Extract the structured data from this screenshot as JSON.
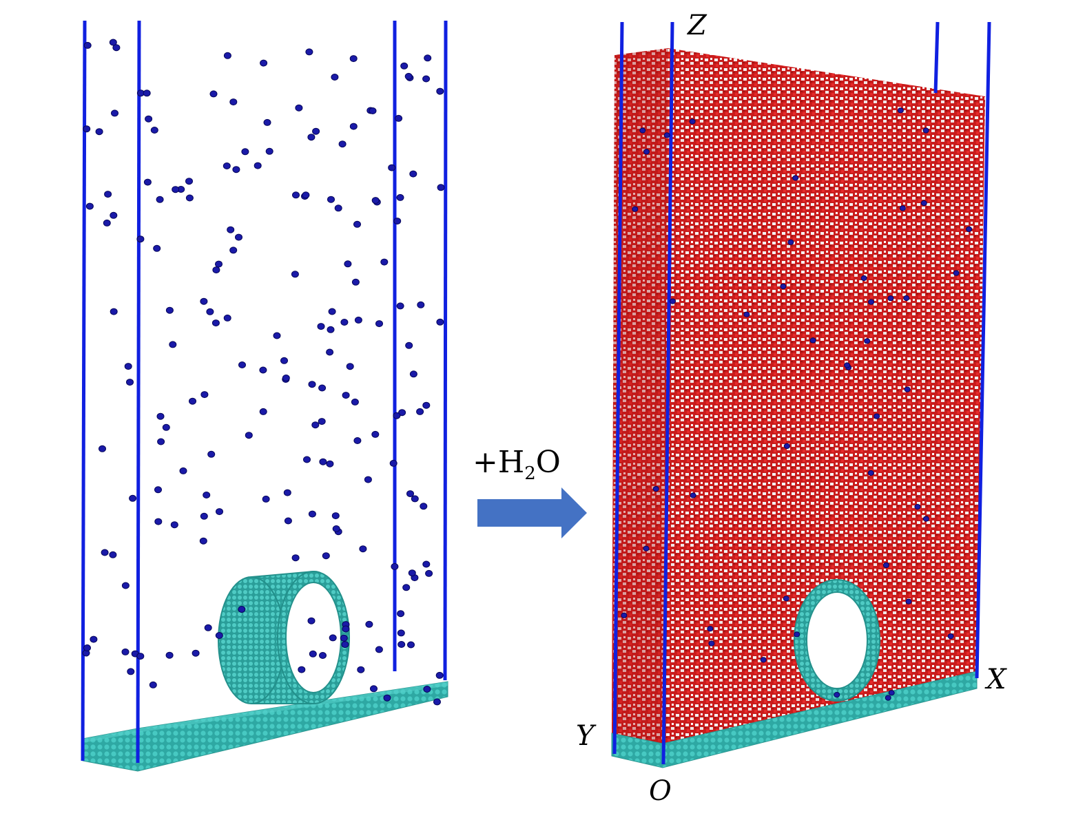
{
  "diagram": {
    "arrow_label": {
      "prefix": "+H",
      "subscript": "2",
      "suffix": "O"
    },
    "axis_labels": {
      "z": "Z",
      "x": "X",
      "y": "Y",
      "origin": "O"
    },
    "colors": {
      "box_edge": "#1020e0",
      "nanotube": "#2fb5b0",
      "graphene": "#39b9b3",
      "ion": "#1a1aa8",
      "water_oxygen": "#d81e1e",
      "water_hydrogen": "#f2f2f2",
      "arrow": "#4472c4"
    },
    "panels": [
      {
        "name": "before-water",
        "contents": [
          "graphene-substrate",
          "carbon-nanotube-ring",
          "ions"
        ]
      },
      {
        "name": "after-water",
        "contents": [
          "graphene-substrate",
          "carbon-nanotube-ring",
          "water-slab",
          "ions"
        ]
      }
    ]
  }
}
